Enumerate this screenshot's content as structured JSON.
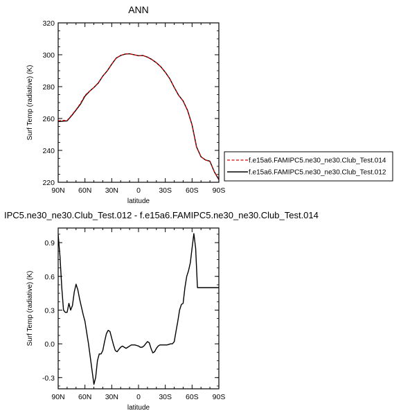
{
  "chart_data": [
    {
      "type": "line",
      "title": "ANN",
      "xlabel": "latitude",
      "ylabel": "Surf Temp (radiative) (K)",
      "xlim": [
        90,
        -90
      ],
      "ylim": [
        220,
        320
      ],
      "x_ticks": [
        90,
        60,
        30,
        0,
        -30,
        -60,
        -90
      ],
      "x_tick_labels": [
        "90N",
        "60N",
        "30N",
        "0",
        "30S",
        "60S",
        "90S"
      ],
      "y_ticks": [
        220,
        240,
        260,
        280,
        300,
        320
      ],
      "y_tick_labels": [
        "220",
        "240",
        "260",
        "280",
        "300",
        "320"
      ],
      "legend_position": "right",
      "series": [
        {
          "name": "f.e15a6.FAMIPC5.ne30_ne30.Club_Test.014",
          "color": "#d40000",
          "dash": true,
          "x": [
            90,
            85,
            80,
            75,
            70,
            65,
            60,
            55,
            50,
            45,
            40,
            35,
            30,
            25,
            20,
            15,
            10,
            5,
            0,
            -5,
            -10,
            -15,
            -20,
            -25,
            -30,
            -35,
            -40,
            -45,
            -50,
            -55,
            -60,
            -65,
            -70,
            -75,
            -80,
            -85,
            -90
          ],
          "values": [
            258.5,
            258.8,
            258.8,
            262,
            265.5,
            269.5,
            274.5,
            277,
            279.5,
            282.5,
            286.5,
            290,
            294,
            298,
            299.5,
            300.5,
            300.6,
            300,
            299.4,
            299.5,
            298.5,
            297,
            295,
            292.5,
            289,
            285,
            279.5,
            274.5,
            271,
            265,
            256,
            242,
            236,
            234,
            233,
            226.5,
            222.2
          ]
        },
        {
          "name": "f.e15a6.FAMIPC5.ne30_ne30.Club_Test.012",
          "color": "#000000",
          "dash": false,
          "x": [
            90,
            85,
            80,
            75,
            70,
            65,
            60,
            55,
            50,
            45,
            40,
            35,
            30,
            25,
            20,
            15,
            10,
            5,
            0,
            -5,
            -10,
            -15,
            -20,
            -25,
            -30,
            -35,
            -40,
            -45,
            -50,
            -55,
            -60,
            -65,
            -70,
            -75,
            -80,
            -85,
            -90
          ],
          "values": [
            258.1,
            258.3,
            258.5,
            261.7,
            265.3,
            269,
            274,
            277,
            279.5,
            282.3,
            286.6,
            289.9,
            294.1,
            297.9,
            299.5,
            300.4,
            300.6,
            300,
            299.4,
            299.5,
            298.5,
            297,
            295,
            292.5,
            289,
            285,
            279.5,
            274.5,
            271,
            265,
            256,
            242.2,
            236,
            234,
            233.2,
            226.5,
            221.7
          ]
        }
      ]
    },
    {
      "type": "line",
      "title": "IPC5.ne30_ne30.Club_Test.012 - f.e15a6.FAMIPC5.ne30_ne30.Club_Test.014",
      "xlabel": "latitude",
      "ylabel": "Surf Temp (radiative) (K)",
      "xlim": [
        90,
        -90
      ],
      "ylim": [
        -0.4,
        1.03
      ],
      "x_ticks": [
        90,
        60,
        30,
        0,
        -30,
        -60,
        -90
      ],
      "x_tick_labels": [
        "90N",
        "60N",
        "30N",
        "0",
        "30S",
        "60S",
        "90S"
      ],
      "y_ticks": [
        -0.3,
        0,
        0.3,
        0.6,
        0.9
      ],
      "y_tick_labels": [
        "-0.3",
        "0.0",
        "0.3",
        "0.6",
        "0.9"
      ],
      "series": [
        {
          "color": "#000000",
          "dash": false,
          "x": [
            90,
            88,
            86,
            84,
            82,
            80,
            78,
            76,
            74,
            72,
            70,
            68,
            66,
            64,
            62,
            60,
            58,
            56,
            54,
            52,
            50,
            48,
            46,
            44,
            42,
            40,
            38,
            36,
            34,
            32,
            30,
            28,
            26,
            24,
            22,
            20,
            18,
            16,
            14,
            12,
            10,
            8,
            6,
            4,
            2,
            0,
            -2,
            -4,
            -6,
            -8,
            -10,
            -12,
            -14,
            -16,
            -18,
            -20,
            -22,
            -24,
            -26,
            -28,
            -30,
            -32,
            -34,
            -36,
            -38,
            -40,
            -42,
            -44,
            -46,
            -48,
            -50,
            -52,
            -54,
            -56,
            -58,
            -60,
            -62,
            -64,
            -66,
            -68,
            -70,
            -72,
            -74,
            -76,
            -78,
            -80,
            -82,
            -84,
            -86,
            -88,
            -90
          ],
          "values": [
            0.97,
            0.78,
            0.5,
            0.3,
            0.28,
            0.28,
            0.36,
            0.3,
            0.34,
            0.46,
            0.53,
            0.48,
            0.4,
            0.33,
            0.26,
            0.2,
            0.1,
            0.0,
            -0.12,
            -0.24,
            -0.36,
            -0.3,
            -0.15,
            -0.09,
            -0.09,
            -0.06,
            0.02,
            0.09,
            0.12,
            0.11,
            0.05,
            -0.01,
            -0.06,
            -0.07,
            -0.05,
            -0.03,
            -0.02,
            -0.03,
            -0.04,
            -0.03,
            -0.02,
            -0.01,
            -0.01,
            -0.01,
            -0.015,
            -0.02,
            -0.03,
            -0.03,
            -0.02,
            0.0,
            0.02,
            0.01,
            -0.04,
            -0.08,
            -0.07,
            -0.04,
            -0.02,
            -0.01,
            -0.01,
            -0.01,
            -0.01,
            -0.01,
            -0.005,
            0.0,
            0.0,
            0.02,
            0.11,
            0.2,
            0.3,
            0.35,
            0.36,
            0.5,
            0.6,
            0.65,
            0.72,
            0.85,
            0.98,
            0.85,
            0.5,
            0.5,
            0.5,
            0.5,
            0.5,
            0.5,
            0.5,
            0.5,
            0.5,
            0.5,
            0.5,
            0.5,
            0.5
          ]
        }
      ]
    }
  ]
}
